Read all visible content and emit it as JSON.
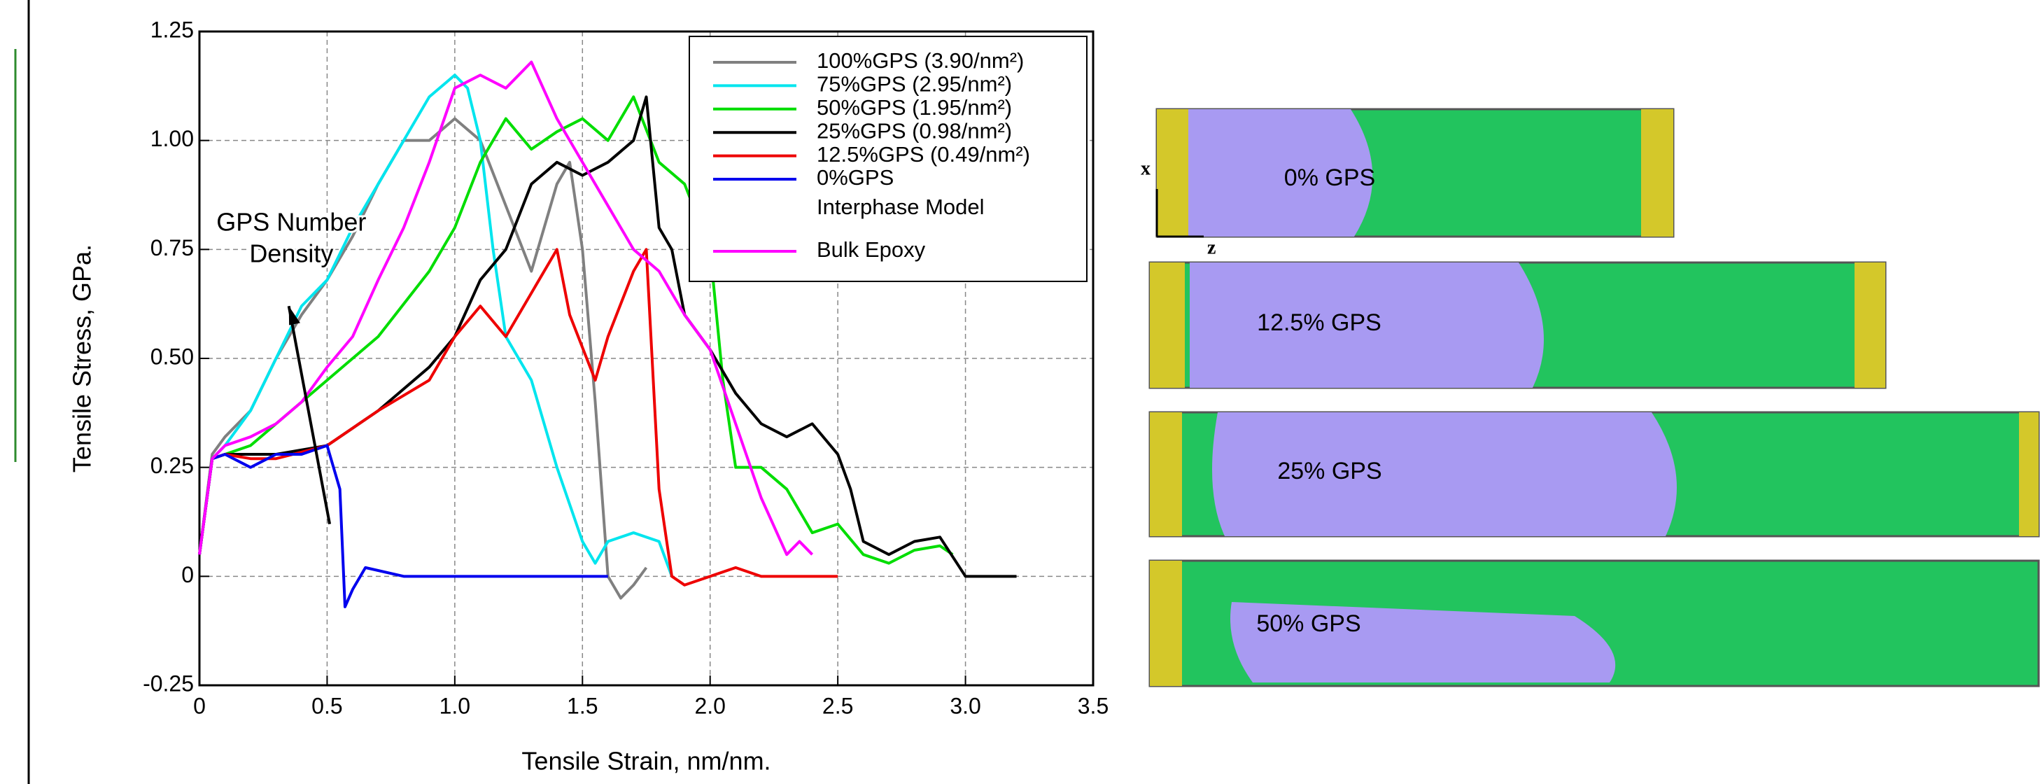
{
  "chart_data": {
    "type": "line",
    "xlabel": "Tensile Strain, nm/nm.",
    "ylabel": "Tensile Stress, GPa.",
    "xlim": [
      0,
      3.5
    ],
    "xticks": [
      0,
      0.5,
      {
        "value": 1,
        "label": "1.0"
      },
      1.5,
      {
        "value": 2,
        "label": "2.0"
      },
      2.5,
      {
        "value": 3,
        "label": "3.0"
      },
      3.5
    ],
    "ylim": [
      -0.25,
      1.25
    ],
    "yticks": [
      -0.25,
      0,
      0.25,
      {
        "value": 0.5,
        "label": "0.50"
      },
      0.75,
      {
        "value": 1,
        "label": "1.00"
      },
      1.25
    ],
    "grid": true,
    "legend_position": "upper right",
    "legend_note": "Interphase Model",
    "annotation": [
      "GPS Number",
      "Density"
    ],
    "series": [
      {
        "name": "100%GPS (3.90/nm²)",
        "color": "#808080",
        "x": [
          0,
          0.05,
          0.1,
          0.2,
          0.3,
          0.4,
          0.5,
          0.6,
          0.7,
          0.8,
          0.9,
          1.0,
          1.1,
          1.2,
          1.3,
          1.4,
          1.45,
          1.5,
          1.55,
          1.6,
          1.65,
          1.7,
          1.75
        ],
        "values": [
          0.05,
          0.28,
          0.32,
          0.38,
          0.5,
          0.6,
          0.68,
          0.78,
          0.9,
          1.0,
          1.0,
          1.05,
          1.0,
          0.85,
          0.7,
          0.9,
          0.95,
          0.75,
          0.4,
          0.0,
          -0.05,
          -0.02,
          0.02
        ]
      },
      {
        "name": "75%GPS (2.95/nm²)",
        "color": "#00e5ee",
        "x": [
          0,
          0.05,
          0.1,
          0.2,
          0.3,
          0.4,
          0.5,
          0.6,
          0.7,
          0.8,
          0.9,
          1.0,
          1.05,
          1.1,
          1.15,
          1.2,
          1.3,
          1.4,
          1.5,
          1.55,
          1.6,
          1.7,
          1.8,
          1.85
        ],
        "values": [
          0.05,
          0.27,
          0.3,
          0.38,
          0.5,
          0.62,
          0.68,
          0.8,
          0.9,
          1.0,
          1.1,
          1.15,
          1.12,
          1.0,
          0.75,
          0.55,
          0.45,
          0.25,
          0.08,
          0.03,
          0.08,
          0.1,
          0.08,
          0.0
        ]
      },
      {
        "name": "50%GPS (1.95/nm²)",
        "color": "#00dd00",
        "x": [
          0,
          0.05,
          0.1,
          0.2,
          0.3,
          0.5,
          0.7,
          0.9,
          1.0,
          1.1,
          1.2,
          1.3,
          1.4,
          1.5,
          1.6,
          1.7,
          1.8,
          1.9,
          2.0,
          2.05,
          2.1,
          2.2,
          2.3,
          2.4,
          2.5,
          2.6,
          2.7,
          2.8,
          2.9,
          2.95
        ],
        "values": [
          0.05,
          0.27,
          0.28,
          0.3,
          0.35,
          0.45,
          0.55,
          0.7,
          0.8,
          0.95,
          1.05,
          0.98,
          1.02,
          1.05,
          1.0,
          1.1,
          0.95,
          0.9,
          0.75,
          0.45,
          0.25,
          0.25,
          0.2,
          0.1,
          0.12,
          0.05,
          0.03,
          0.06,
          0.07,
          0.05
        ]
      },
      {
        "name": "25%GPS (0.98/nm²)",
        "color": "#000000",
        "x": [
          0,
          0.05,
          0.1,
          0.2,
          0.3,
          0.5,
          0.7,
          0.9,
          1.0,
          1.1,
          1.2,
          1.3,
          1.4,
          1.5,
          1.6,
          1.7,
          1.75,
          1.8,
          1.85,
          1.9,
          2.0,
          2.1,
          2.2,
          2.3,
          2.4,
          2.5,
          2.55,
          2.6,
          2.7,
          2.8,
          2.9,
          3.0,
          3.1,
          3.2
        ],
        "values": [
          0.05,
          0.27,
          0.28,
          0.28,
          0.28,
          0.3,
          0.38,
          0.48,
          0.55,
          0.68,
          0.75,
          0.9,
          0.95,
          0.92,
          0.95,
          1.0,
          1.1,
          0.8,
          0.75,
          0.6,
          0.52,
          0.42,
          0.35,
          0.32,
          0.35,
          0.28,
          0.2,
          0.08,
          0.05,
          0.08,
          0.09,
          0.0,
          0.0,
          0.0
        ]
      },
      {
        "name": "12.5%GPS (0.49/nm²)",
        "color": "#ee0000",
        "x": [
          0,
          0.05,
          0.1,
          0.2,
          0.3,
          0.5,
          0.7,
          0.9,
          1.0,
          1.1,
          1.2,
          1.3,
          1.4,
          1.45,
          1.55,
          1.6,
          1.7,
          1.75,
          1.8,
          1.85,
          1.9,
          2.0,
          2.1,
          2.2,
          2.3,
          2.5
        ],
        "values": [
          0.05,
          0.27,
          0.28,
          0.27,
          0.27,
          0.3,
          0.38,
          0.45,
          0.55,
          0.62,
          0.55,
          0.65,
          0.75,
          0.6,
          0.45,
          0.55,
          0.7,
          0.75,
          0.2,
          0.0,
          -0.02,
          0.0,
          0.02,
          0.0,
          0.0,
          0.0
        ]
      },
      {
        "name": "0%GPS",
        "color": "#0000ee",
        "x": [
          0,
          0.05,
          0.1,
          0.2,
          0.3,
          0.4,
          0.5,
          0.55,
          0.57,
          0.6,
          0.65,
          0.8,
          1.0,
          1.2,
          1.4,
          1.6
        ],
        "values": [
          0.05,
          0.27,
          0.28,
          0.25,
          0.28,
          0.28,
          0.3,
          0.2,
          -0.07,
          -0.03,
          0.02,
          0.0,
          0.0,
          0.0,
          0.0,
          0.0
        ]
      },
      {
        "name": "Bulk Epoxy",
        "color": "#ff00ff",
        "x": [
          0,
          0.05,
          0.1,
          0.2,
          0.3,
          0.4,
          0.5,
          0.6,
          0.7,
          0.8,
          0.9,
          1.0,
          1.1,
          1.2,
          1.3,
          1.4,
          1.5,
          1.6,
          1.7,
          1.8,
          1.9,
          2.0,
          2.1,
          2.2,
          2.3,
          2.35,
          2.4
        ],
        "values": [
          0.05,
          0.27,
          0.3,
          0.32,
          0.35,
          0.4,
          0.48,
          0.55,
          0.68,
          0.8,
          0.95,
          1.12,
          1.15,
          1.12,
          1.18,
          1.05,
          0.95,
          0.85,
          0.75,
          0.7,
          0.6,
          0.52,
          0.35,
          0.18,
          0.05,
          0.08,
          0.05
        ]
      }
    ]
  },
  "panels": {
    "axis_x": "x",
    "axis_z": "z",
    "labels": [
      "0% GPS",
      "12.5% GPS",
      "25% GPS",
      "50% GPS"
    ]
  }
}
